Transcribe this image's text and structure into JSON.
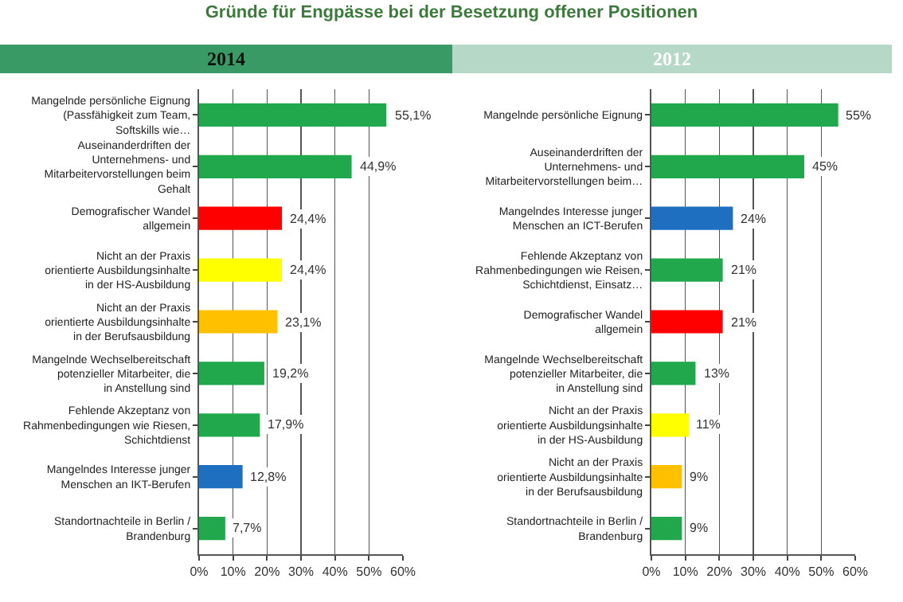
{
  "chart_data": [
    {
      "type": "bar",
      "orientation": "horizontal",
      "title": "Gründe für Engpässe bei der Besetzung offener Positionen",
      "subtitle": "2014",
      "categories": [
        "Mangelnde persönliche Eignung (Passfähigkeit zum Team, Softskills wie…",
        "Auseinanderdriften der Unternehmens- und Mitarbeitervorstellungen beim Gehalt",
        "Demografischer Wandel allgemein",
        "Nicht an der Praxis orientierte Ausbildungsinhalte in der HS-Ausbildung",
        "Nicht an der Praxis orientierte Ausbildungsinhalte in der Berufsausbildung",
        "Mangelnde Wechselbereitschaft potenzieller Mitarbeiter, die in Anstellung sind",
        "Fehlende Akzeptanz von Rahmenbedingungen wie Riesen, Schichtdienst",
        "Mangelndes Interesse junger Menschen an IKT-Berufen",
        "Standortnachteile in Berlin / Brandenburg"
      ],
      "values": [
        55.1,
        44.9,
        24.4,
        24.4,
        23.1,
        19.2,
        17.9,
        12.8,
        7.7
      ],
      "value_labels": [
        "55,1%",
        "44,9%",
        "24,4%",
        "24,4%",
        "23,1%",
        "19,2%",
        "17,9%",
        "12,8%",
        "7,7%"
      ],
      "colors": [
        "#21a84c",
        "#21a84c",
        "#ff0000",
        "#ffff00",
        "#ffc000",
        "#21a84c",
        "#21a84c",
        "#1f6fc0",
        "#21a84c"
      ],
      "xlim": [
        0,
        60
      ],
      "xticks": [
        {
          "value": 0,
          "label": "0%"
        },
        {
          "value": 10,
          "label": "10%"
        },
        {
          "value": 20,
          "label": "20%"
        },
        {
          "value": 30,
          "label": "30%"
        },
        {
          "value": 40,
          "label": "40%"
        },
        {
          "value": 50,
          "label": "50%"
        },
        {
          "value": 60,
          "label": "60%"
        }
      ],
      "grid": "x"
    },
    {
      "type": "bar",
      "orientation": "horizontal",
      "subtitle": "2012",
      "categories": [
        "Mangelnde persönliche Eignung",
        "Auseinanderdriften der Unternehmens- und Mitarbeitervorstellungen beim…",
        "Mangelndes Interesse junger Menschen an ICT-Berufen",
        "Fehlende Akzeptanz von Rahmenbedingungen wie Reisen, Schichtdienst, Einsatz…",
        "Demografischer Wandel allgemein",
        "Mangelnde Wechselbereitschaft potenzieller Mitarbeiter, die in Anstellung sind",
        "Nicht an der Praxis orientierte Ausbildungsinhalte in der HS-Ausbildung",
        "Nicht an der Praxis orientierte Ausbildungsinhalte in der Berufsausbildung",
        "Standortnachteile in Berlin / Brandenburg"
      ],
      "values": [
        55,
        45,
        24,
        21,
        21,
        13,
        11,
        9,
        9
      ],
      "value_labels": [
        "55%",
        "45%",
        "24%",
        "21%",
        "21%",
        "13%",
        "11%",
        "9%",
        "9%"
      ],
      "colors": [
        "#21a84c",
        "#21a84c",
        "#1f6fc0",
        "#21a84c",
        "#ff0000",
        "#21a84c",
        "#ffff00",
        "#ffc000",
        "#21a84c"
      ],
      "xlim": [
        0,
        60
      ],
      "xticks": [
        {
          "value": 0,
          "label": "0%"
        },
        {
          "value": 10,
          "label": "10%"
        },
        {
          "value": 20,
          "label": "20%"
        },
        {
          "value": 30,
          "label": "30%"
        },
        {
          "value": 40,
          "label": "40%"
        },
        {
          "value": 50,
          "label": "50%"
        },
        {
          "value": 60,
          "label": "60%"
        }
      ],
      "grid": "x"
    }
  ]
}
